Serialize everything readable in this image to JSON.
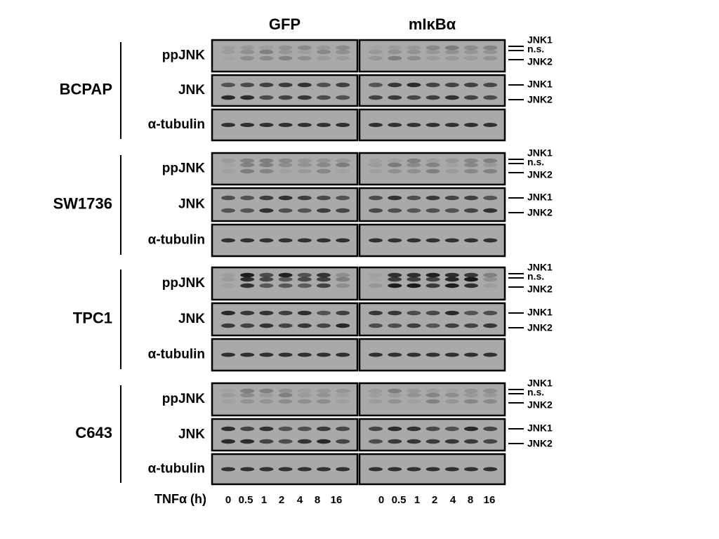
{
  "columns": [
    "GFP",
    "mIκBα"
  ],
  "groups": [
    {
      "cell_line": "BCPAP",
      "blots": [
        {
          "antibody": "ppJNK",
          "bands": [
            "JNK1",
            "n.s.",
            "JNK2"
          ]
        },
        {
          "antibody": "JNK",
          "bands": [
            "JNK1",
            "JNK2"
          ]
        },
        {
          "antibody": "α-tubulin"
        }
      ]
    },
    {
      "cell_line": "SW1736",
      "blots": [
        {
          "antibody": "ppJNK",
          "bands": [
            "JNK1",
            "n.s.",
            "JNK2"
          ]
        },
        {
          "antibody": "JNK",
          "bands": [
            "JNK1",
            "JNK2"
          ]
        },
        {
          "antibody": "α-tubulin"
        }
      ]
    },
    {
      "cell_line": "TPC1",
      "blots": [
        {
          "antibody": "ppJNK",
          "bands": [
            "JNK1",
            "n.s.",
            "JNK2"
          ]
        },
        {
          "antibody": "JNK",
          "bands": [
            "JNK1",
            "JNK2"
          ]
        },
        {
          "antibody": "α-tubulin"
        }
      ]
    },
    {
      "cell_line": "C643",
      "blots": [
        {
          "antibody": "ppJNK",
          "bands": [
            "JNK1",
            "n.s.",
            "JNK2"
          ]
        },
        {
          "antibody": "JNK",
          "bands": [
            "JNK1",
            "JNK2"
          ]
        },
        {
          "antibody": "α-tubulin"
        }
      ]
    }
  ],
  "treatment": {
    "label": "TNFα (h)",
    "timepoints": [
      "0",
      "0.5",
      "1",
      "2",
      "4",
      "8",
      "16"
    ]
  }
}
